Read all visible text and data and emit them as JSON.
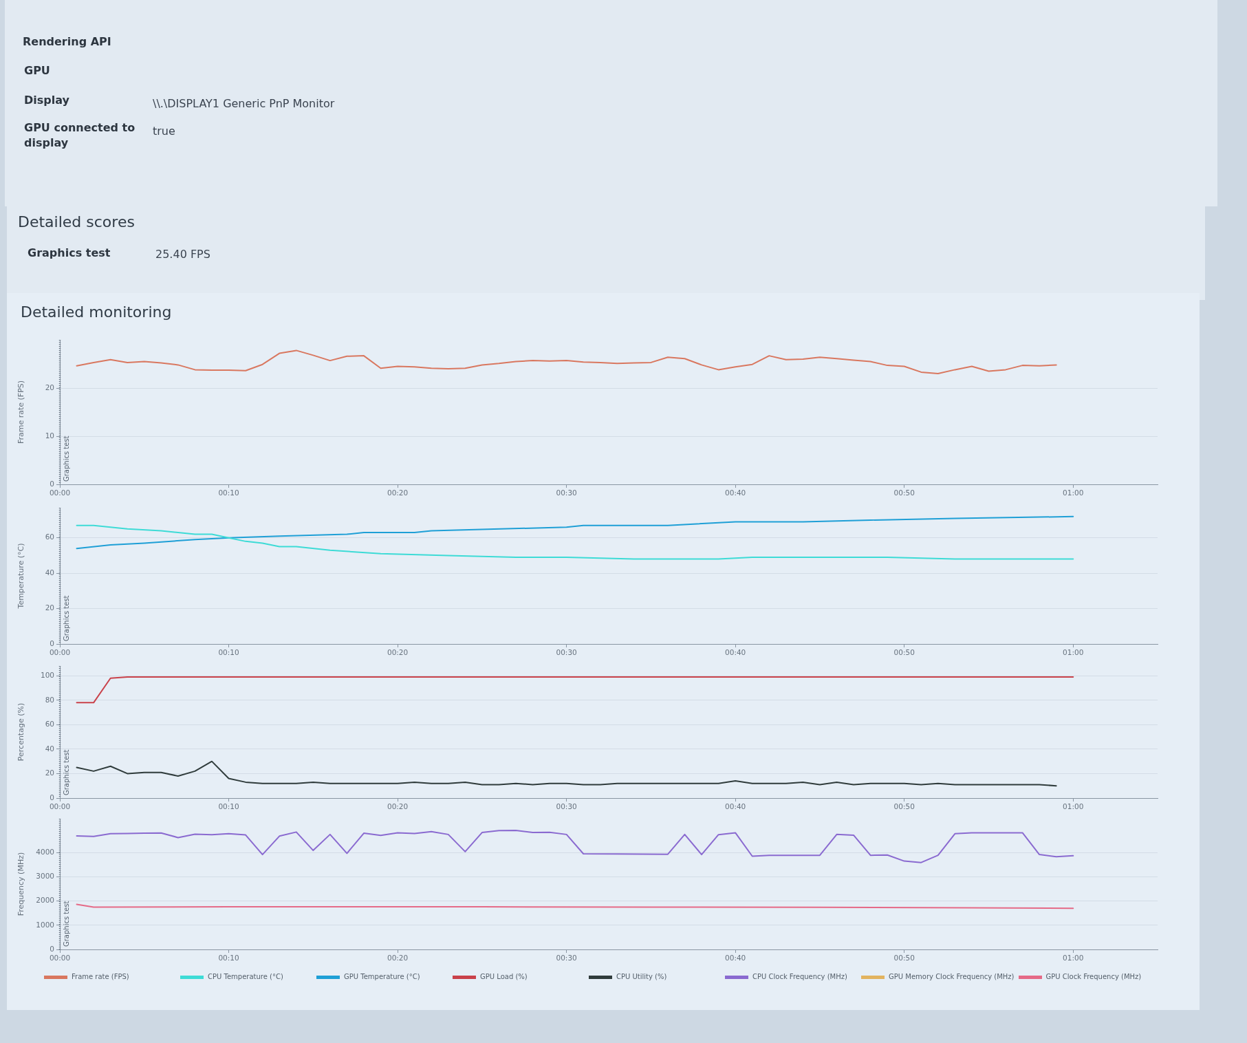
{
  "chart_data": [
    {
      "type": "line",
      "title": "Detailed monitoring",
      "ylabel": "Frame rate (FPS)",
      "annotations": [
        "Rendering API",
        "GPU",
        "Display",
        "\\\\.\\DISPLAY1 Generic PnP Monitor",
        "GPU connected to display",
        "true",
        "Detailed scores",
        "Graphics test",
        "25.40 FPS"
      ],
      "x": [
        1,
        2,
        3,
        4,
        5,
        6,
        7,
        8,
        9,
        10,
        11,
        12,
        13,
        14,
        15,
        16,
        17,
        18,
        19,
        20,
        21,
        22,
        23,
        24,
        25,
        26,
        27,
        28,
        29,
        30,
        31,
        32,
        33,
        34,
        35,
        36,
        37,
        38,
        39,
        40,
        41,
        42,
        43,
        44,
        45,
        46,
        47,
        48,
        49,
        50,
        51,
        52,
        53,
        54,
        55,
        56,
        57,
        58,
        59
      ],
      "series": [
        {
          "name": "Frame rate (FPS)",
          "color": "#d9775f",
          "values": [
            24.6,
            25.3,
            25.9,
            25.3,
            25.5,
            25.2,
            24.8,
            23.8,
            23.7,
            23.7,
            23.6,
            24.9,
            27.2,
            27.8,
            26.8,
            25.7,
            26.6,
            26.7,
            24.1,
            24.5,
            24.4,
            24.1,
            24.0,
            24.1,
            24.8,
            25.1,
            25.5,
            25.7,
            25.6,
            25.7,
            25.4,
            25.3,
            25.1,
            25.2,
            25.3,
            26.4,
            26.1,
            24.8,
            23.8,
            24.4,
            24.9,
            26.7,
            25.9,
            26.0,
            26.4,
            26.1,
            25.8,
            25.5,
            24.7,
            24.5,
            23.3,
            23.0,
            23.8,
            24.5,
            23.5,
            23.8,
            24.7,
            24.6,
            24.8
          ]
        }
      ],
      "xlim": [
        0,
        65
      ],
      "xticks": [
        {
          "value": 0,
          "label": "00:00"
        },
        {
          "value": 10,
          "label": "00:10"
        },
        {
          "value": 20,
          "label": "00:20"
        },
        {
          "value": 30,
          "label": "00:30"
        },
        {
          "value": 40,
          "label": "00:40"
        },
        {
          "value": 50,
          "label": "00:50"
        },
        {
          "value": 60,
          "label": "01:00"
        }
      ],
      "ylim": [
        0,
        30
      ],
      "yticks": [
        0,
        10,
        20
      ],
      "ref_lines": [
        {
          "axis": "x",
          "value": 0,
          "label": "Graphics test",
          "line_style": "dotted"
        }
      ],
      "grid": "y",
      "legend": "bottom",
      "marker": "none",
      "line_style": "solid"
    },
    {
      "type": "line",
      "ylabel": "Temperature (°C)",
      "series": [
        {
          "name": "CPU Temperature (°C)",
          "color": "#3ddbd6",
          "x": [
            1,
            2,
            4,
            6,
            8,
            9,
            10,
            11,
            12,
            13,
            14,
            16,
            19,
            23,
            27,
            30,
            34,
            39,
            41,
            44,
            49,
            53,
            60
          ],
          "values": [
            67,
            67,
            65,
            64,
            62,
            62,
            60,
            58,
            57,
            55,
            55,
            53,
            51,
            50,
            49,
            49,
            48,
            48,
            49,
            49,
            49,
            48,
            48
          ]
        },
        {
          "name": "GPU Temperature (°C)",
          "color": "#1e9fd6",
          "x": [
            1,
            3,
            5,
            8,
            10,
            13,
            17,
            18,
            21,
            22,
            30,
            31,
            36,
            40,
            44,
            48,
            53,
            60
          ],
          "values": [
            54,
            56,
            57,
            59,
            60,
            61,
            62,
            63,
            63,
            64,
            66,
            67,
            67,
            69,
            69,
            70,
            71,
            72
          ]
        }
      ],
      "xlim": [
        0,
        65
      ],
      "xticks": [
        {
          "value": 0,
          "label": "00:00"
        },
        {
          "value": 10,
          "label": "00:10"
        },
        {
          "value": 20,
          "label": "00:20"
        },
        {
          "value": 30,
          "label": "00:30"
        },
        {
          "value": 40,
          "label": "00:40"
        },
        {
          "value": 50,
          "label": "00:50"
        },
        {
          "value": 60,
          "label": "01:00"
        }
      ],
      "ylim": [
        0,
        77
      ],
      "yticks": [
        0,
        20,
        40,
        60
      ],
      "ref_lines": [
        {
          "axis": "x",
          "value": 0,
          "label": "Graphics test",
          "line_style": "dotted"
        }
      ],
      "grid": "y",
      "legend": "bottom",
      "marker": "none",
      "line_style": "solid"
    },
    {
      "type": "line",
      "ylabel": "Percentage (%)",
      "series": [
        {
          "name": "GPU Load (%)",
          "color": "#c9414a",
          "x": [
            1,
            2,
            3,
            4,
            10,
            20,
            30,
            40,
            50,
            60
          ],
          "values": [
            78,
            78,
            98,
            99,
            99,
            99,
            99,
            99,
            99,
            99
          ]
        },
        {
          "name": "CPU Utility (%)",
          "color": "#2f3b3b",
          "x": [
            1,
            2,
            3,
            4,
            5,
            6,
            7,
            8,
            9,
            10,
            11,
            12,
            13,
            14,
            15,
            16,
            17,
            18,
            19,
            20,
            21,
            22,
            23,
            24,
            25,
            26,
            27,
            28,
            29,
            30,
            31,
            32,
            33,
            34,
            35,
            36,
            37,
            38,
            39,
            40,
            41,
            42,
            43,
            44,
            45,
            46,
            47,
            48,
            49,
            50,
            51,
            52,
            53,
            54,
            55,
            56,
            57,
            58,
            59
          ],
          "values": [
            25,
            22,
            26,
            20,
            21,
            21,
            18,
            22,
            30,
            16,
            13,
            12,
            12,
            12,
            13,
            12,
            12,
            12,
            12,
            12,
            13,
            12,
            12,
            13,
            11,
            11,
            12,
            11,
            12,
            12,
            11,
            11,
            12,
            12,
            12,
            12,
            12,
            12,
            12,
            14,
            12,
            12,
            12,
            13,
            11,
            13,
            11,
            12,
            12,
            12,
            11,
            12,
            11,
            11,
            11,
            11,
            11,
            11,
            10
          ]
        }
      ],
      "xlim": [
        0,
        65
      ],
      "xticks": [
        {
          "value": 0,
          "label": "00:00"
        },
        {
          "value": 10,
          "label": "00:10"
        },
        {
          "value": 20,
          "label": "00:20"
        },
        {
          "value": 30,
          "label": "00:30"
        },
        {
          "value": 40,
          "label": "00:40"
        },
        {
          "value": 50,
          "label": "00:50"
        },
        {
          "value": 60,
          "label": "01:00"
        }
      ],
      "ylim": [
        0,
        108
      ],
      "yticks": [
        0,
        20,
        40,
        60,
        80,
        100
      ],
      "ref_lines": [
        {
          "axis": "x",
          "value": 0,
          "label": "Graphics test",
          "line_style": "dotted"
        }
      ],
      "grid": "y",
      "legend": "bottom",
      "marker": "none",
      "line_style": "solid"
    },
    {
      "type": "line",
      "ylabel": "Frequency (MHz)",
      "series": [
        {
          "name": "CPU Clock Frequency (MHz)",
          "color": "#8a6ad0",
          "x": [
            1,
            2,
            3,
            4,
            5,
            6,
            7,
            8,
            9,
            10,
            11,
            12,
            13,
            14,
            15,
            16,
            17,
            18,
            19,
            20,
            21,
            22,
            23,
            24,
            25,
            26,
            27,
            28,
            29,
            30,
            31,
            33,
            36,
            37,
            38,
            39,
            40,
            41,
            42,
            45,
            46,
            47,
            48,
            49,
            50,
            51,
            52,
            53,
            54,
            57,
            58,
            59,
            60
          ],
          "values": [
            4690,
            4670,
            4780,
            4790,
            4800,
            4810,
            4620,
            4760,
            4740,
            4780,
            4730,
            3920,
            4680,
            4850,
            4090,
            4750,
            3970,
            4800,
            4710,
            4820,
            4790,
            4870,
            4750,
            4040,
            4830,
            4910,
            4920,
            4830,
            4840,
            4750,
            3950,
            3940,
            3930,
            4750,
            3920,
            4740,
            4820,
            3850,
            3890,
            3890,
            4750,
            4720,
            3890,
            3900,
            3650,
            3590,
            3890,
            4780,
            4820,
            4820,
            3920,
            3830,
            3870
          ]
        },
        {
          "name": "GPU Memory Clock Frequency (MHz)",
          "color": "#e2b35f"
        },
        {
          "name": "GPU Clock Frequency (MHz)",
          "color": "#e56a87",
          "x": [
            1,
            2,
            10,
            16,
            25,
            35,
            45,
            54,
            60
          ],
          "values": [
            1860,
            1750,
            1760,
            1760,
            1760,
            1750,
            1740,
            1720,
            1700
          ]
        }
      ],
      "xlim": [
        0,
        65
      ],
      "xticks": [
        {
          "value": 0,
          "label": "00:00"
        },
        {
          "value": 10,
          "label": "00:10"
        },
        {
          "value": 20,
          "label": "00:20"
        },
        {
          "value": 30,
          "label": "00:30"
        },
        {
          "value": 40,
          "label": "00:40"
        },
        {
          "value": 50,
          "label": "00:50"
        },
        {
          "value": 60,
          "label": "01:00"
        }
      ],
      "ylim": [
        0,
        5400
      ],
      "yticks": [
        0,
        1000,
        2000,
        3000,
        4000
      ],
      "ref_lines": [
        {
          "axis": "x",
          "value": 0,
          "label": "Graphics test",
          "line_style": "dotted"
        }
      ],
      "grid": "y",
      "legend": "bottom",
      "marker": "none",
      "line_style": "solid"
    }
  ]
}
